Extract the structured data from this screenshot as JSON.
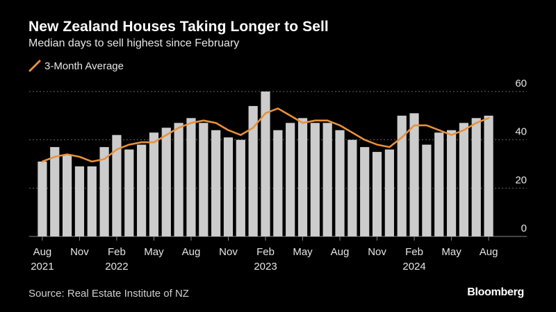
{
  "header": {
    "title": "New Zealand Houses Taking Longer to Sell",
    "subtitle": "Median days to sell highest since February"
  },
  "footer": {
    "source": "Source: Real Estate Institute of NZ",
    "brand": "Bloomberg"
  },
  "colors": {
    "background": "#000000",
    "bar": "#cccccc",
    "line": "#e8913b",
    "grid": "#666666",
    "text": "#ffffff"
  },
  "chart_data": {
    "type": "bar",
    "title": "New Zealand Houses Taking Longer to Sell",
    "subtitle": "Median days to sell highest since February",
    "ylim": [
      0,
      60
    ],
    "yticks": [
      0,
      20,
      40,
      60
    ],
    "y_axis_position": "right",
    "grid": true,
    "legend": {
      "position": "top-left",
      "entries": [
        "3-Month Average"
      ]
    },
    "x_tick_labels": [
      {
        "index": 0,
        "month": "Aug",
        "year": "2021"
      },
      {
        "index": 3,
        "month": "Nov",
        "year": ""
      },
      {
        "index": 6,
        "month": "Feb",
        "year": "2022"
      },
      {
        "index": 9,
        "month": "May",
        "year": ""
      },
      {
        "index": 12,
        "month": "Aug",
        "year": ""
      },
      {
        "index": 15,
        "month": "Nov",
        "year": ""
      },
      {
        "index": 18,
        "month": "Feb",
        "year": "2023"
      },
      {
        "index": 21,
        "month": "May",
        "year": ""
      },
      {
        "index": 24,
        "month": "Aug",
        "year": ""
      },
      {
        "index": 27,
        "month": "Nov",
        "year": ""
      },
      {
        "index": 30,
        "month": "Feb",
        "year": "2024"
      },
      {
        "index": 33,
        "month": "May",
        "year": ""
      },
      {
        "index": 36,
        "month": "Aug",
        "year": ""
      }
    ],
    "categories": [
      "Aug 2021",
      "Sep 2021",
      "Oct 2021",
      "Nov 2021",
      "Dec 2021",
      "Jan 2022",
      "Feb 2022",
      "Mar 2022",
      "Apr 2022",
      "May 2022",
      "Jun 2022",
      "Jul 2022",
      "Aug 2022",
      "Sep 2022",
      "Oct 2022",
      "Nov 2022",
      "Dec 2022",
      "Jan 2023",
      "Feb 2023",
      "Mar 2023",
      "Apr 2023",
      "May 2023",
      "Jun 2023",
      "Jul 2023",
      "Aug 2023",
      "Sep 2023",
      "Oct 2023",
      "Nov 2023",
      "Dec 2023",
      "Jan 2024",
      "Feb 2024",
      "Mar 2024",
      "Apr 2024",
      "May 2024",
      "Jun 2024",
      "Jul 2024",
      "Aug 2024"
    ],
    "series": [
      {
        "type": "bar",
        "values": [
          31,
          37,
          34,
          29,
          29,
          37,
          42,
          36,
          38,
          43,
          45,
          47,
          49,
          47,
          44,
          41,
          40,
          54,
          60,
          44,
          47,
          49,
          47,
          47,
          44,
          40,
          37,
          35,
          36,
          50,
          51,
          38,
          43,
          44,
          47,
          49,
          50
        ]
      },
      {
        "name": "3-Month Average",
        "type": "line",
        "values": [
          31,
          33,
          34,
          33,
          31,
          32,
          36,
          38,
          39,
          39,
          42,
          45,
          47,
          48,
          47,
          44,
          42,
          45,
          51,
          53,
          50,
          47,
          48,
          48,
          46,
          43,
          40,
          38,
          37,
          41,
          46,
          46,
          44,
          42,
          44,
          47,
          49
        ]
      }
    ]
  }
}
